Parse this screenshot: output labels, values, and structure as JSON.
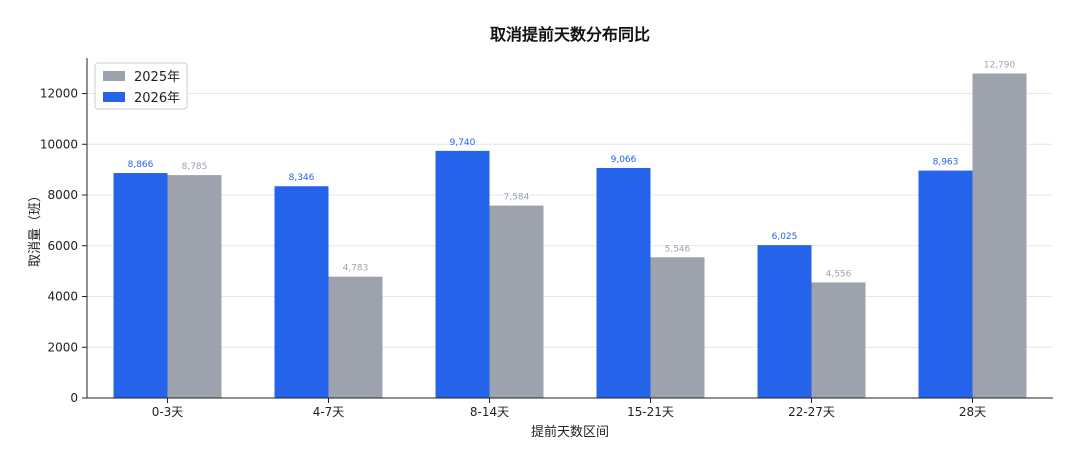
{
  "chart_data": {
    "type": "bar",
    "title": "取消提前天数分布同比",
    "xlabel": "提前天数区间",
    "ylabel": "取消量（班）",
    "categories": [
      "0-3天",
      "4-7天",
      "8-14天",
      "15-21天",
      "22-27天",
      "28天"
    ],
    "series": [
      {
        "name": "2026年",
        "color": "#2563eb",
        "label_color": "#2563eb",
        "values": [
          8866,
          8346,
          9740,
          9066,
          6025,
          8963
        ]
      },
      {
        "name": "2025年",
        "color": "#9ca3af",
        "label_color": "#9ca3af",
        "values": [
          8785,
          4783,
          7584,
          5546,
          4556,
          12790
        ]
      }
    ],
    "legend_order": [
      "2025年",
      "2026年"
    ],
    "data_labels": [
      [
        "8,866",
        "8,346",
        "9,740",
        "9,066",
        "6,025",
        "8,963"
      ],
      [
        "8,785",
        "4,783",
        "7,584",
        "5,546",
        "4,556",
        "12,790"
      ]
    ],
    "ylim": [
      0,
      13400
    ],
    "yticks": [
      0,
      2000,
      4000,
      6000,
      8000,
      10000,
      12000
    ],
    "ytick_labels": [
      "0",
      "2000",
      "4000",
      "6000",
      "8000",
      "10000",
      "12000"
    ],
    "grid": true,
    "legend_position": "top-left"
  }
}
